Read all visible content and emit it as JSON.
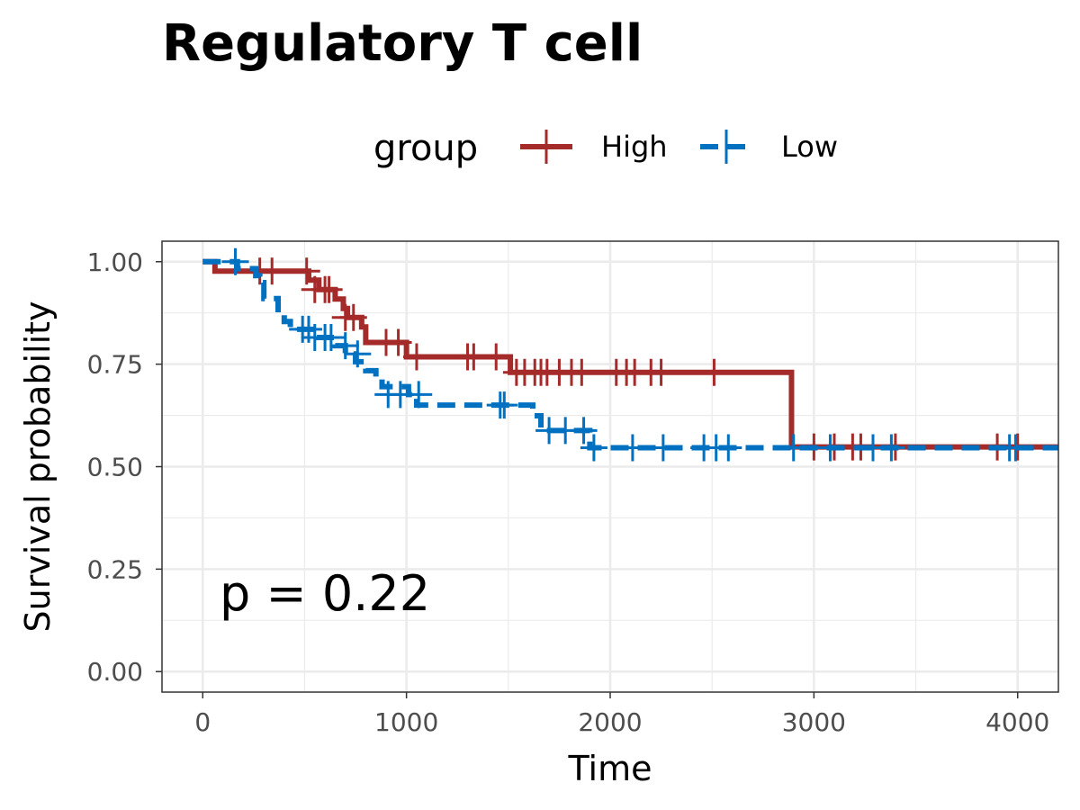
{
  "chart_data": {
    "type": "line",
    "title": "Regulatory T cell",
    "xlabel": "Time",
    "ylabel": "Survival probability",
    "xlim": [
      -200,
      4200
    ],
    "ylim": [
      -0.05,
      1.05
    ],
    "x_ticks": [
      0,
      1000,
      2000,
      3000,
      4000
    ],
    "x_tick_labels": [
      "0",
      "1000",
      "2000",
      "3000",
      "4000"
    ],
    "y_ticks": [
      0,
      0.25,
      0.5,
      0.75,
      1
    ],
    "y_tick_labels": [
      "0.00",
      "0.25",
      "0.50",
      "0.75",
      "1.00"
    ],
    "grid": true,
    "legend": {
      "title": "group",
      "position": "top"
    },
    "annotation": "p = 0.22",
    "series": [
      {
        "name": "High",
        "color": "#a52a2a",
        "line_style": "solid",
        "steps": [
          [
            0,
            1.0
          ],
          [
            60,
            0.977
          ],
          [
            520,
            0.955
          ],
          [
            570,
            0.932
          ],
          [
            650,
            0.909
          ],
          [
            690,
            0.886
          ],
          [
            710,
            0.864
          ],
          [
            780,
            0.841
          ],
          [
            800,
            0.803
          ],
          [
            1000,
            0.768
          ],
          [
            1510,
            0.73
          ],
          [
            2890,
            0.548
          ]
        ],
        "end_x": 4200,
        "censored": [
          [
            280,
            0.977
          ],
          [
            340,
            0.977
          ],
          [
            510,
            0.977
          ],
          [
            550,
            0.932
          ],
          [
            600,
            0.932
          ],
          [
            620,
            0.932
          ],
          [
            700,
            0.864
          ],
          [
            740,
            0.864
          ],
          [
            900,
            0.803
          ],
          [
            960,
            0.803
          ],
          [
            1050,
            0.768
          ],
          [
            1300,
            0.768
          ],
          [
            1330,
            0.768
          ],
          [
            1440,
            0.768
          ],
          [
            1540,
            0.73
          ],
          [
            1580,
            0.73
          ],
          [
            1630,
            0.73
          ],
          [
            1660,
            0.73
          ],
          [
            1690,
            0.73
          ],
          [
            1750,
            0.73
          ],
          [
            1810,
            0.73
          ],
          [
            1860,
            0.73
          ],
          [
            2030,
            0.73
          ],
          [
            2080,
            0.73
          ],
          [
            2120,
            0.73
          ],
          [
            2200,
            0.73
          ],
          [
            2250,
            0.73
          ],
          [
            2510,
            0.73
          ],
          [
            3000,
            0.548
          ],
          [
            3100,
            0.548
          ],
          [
            3190,
            0.548
          ],
          [
            3230,
            0.548
          ],
          [
            3400,
            0.548
          ],
          [
            3900,
            0.548
          ],
          [
            4000,
            0.548
          ]
        ]
      },
      {
        "name": "Low",
        "color": "#0070c0",
        "line_style": "dashed",
        "steps": [
          [
            0,
            1.0
          ],
          [
            170,
            0.983
          ],
          [
            260,
            0.966
          ],
          [
            280,
            0.949
          ],
          [
            300,
            0.91
          ],
          [
            370,
            0.873
          ],
          [
            400,
            0.854
          ],
          [
            430,
            0.835
          ],
          [
            560,
            0.815
          ],
          [
            650,
            0.795
          ],
          [
            700,
            0.775
          ],
          [
            750,
            0.756
          ],
          [
            800,
            0.734
          ],
          [
            850,
            0.715
          ],
          [
            880,
            0.695
          ],
          [
            1010,
            0.676
          ],
          [
            1050,
            0.65
          ],
          [
            1620,
            0.624
          ],
          [
            1660,
            0.588
          ],
          [
            1900,
            0.546
          ]
        ],
        "end_x": 4200,
        "censored": [
          [
            160,
            1.0
          ],
          [
            490,
            0.835
          ],
          [
            520,
            0.835
          ],
          [
            550,
            0.815
          ],
          [
            600,
            0.815
          ],
          [
            630,
            0.815
          ],
          [
            700,
            0.795
          ],
          [
            760,
            0.775
          ],
          [
            910,
            0.676
          ],
          [
            970,
            0.676
          ],
          [
            1060,
            0.676
          ],
          [
            1460,
            0.65
          ],
          [
            1480,
            0.65
          ],
          [
            1700,
            0.588
          ],
          [
            1780,
            0.588
          ],
          [
            1870,
            0.588
          ],
          [
            1920,
            0.546
          ],
          [
            2110,
            0.546
          ],
          [
            2260,
            0.546
          ],
          [
            2460,
            0.546
          ],
          [
            2520,
            0.546
          ],
          [
            2580,
            0.546
          ],
          [
            2900,
            0.546
          ],
          [
            3080,
            0.546
          ],
          [
            3290,
            0.546
          ],
          [
            3380,
            0.546
          ],
          [
            3960,
            0.546
          ],
          [
            3990,
            0.546
          ]
        ]
      }
    ]
  }
}
